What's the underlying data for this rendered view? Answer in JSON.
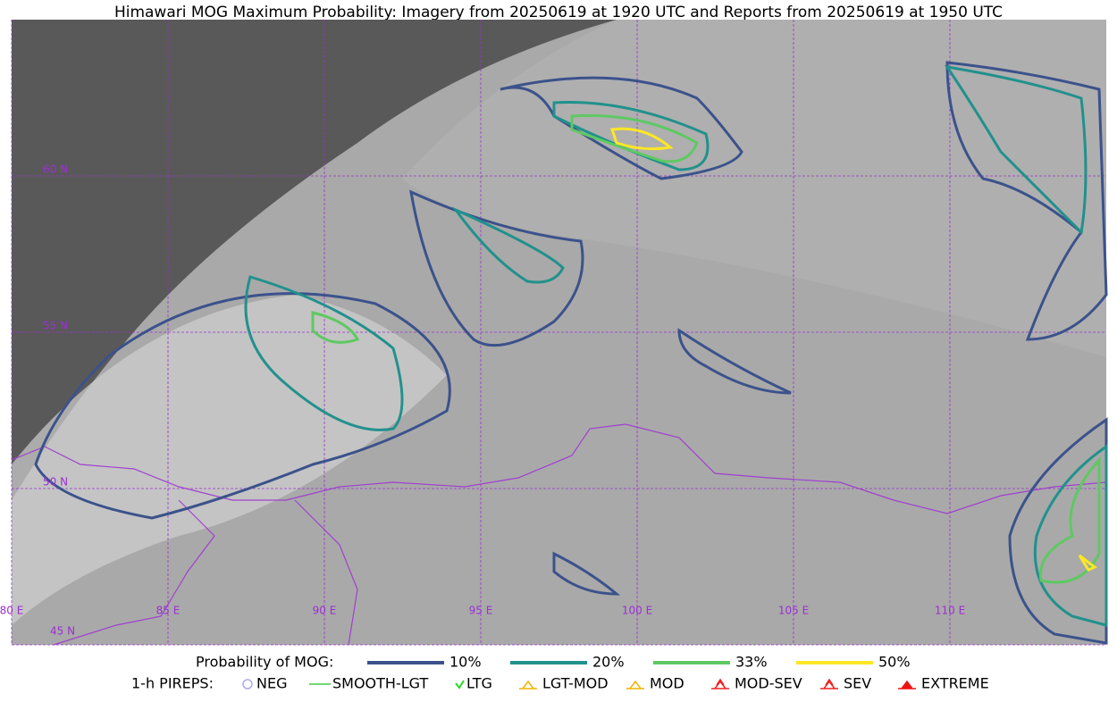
{
  "header": {
    "title": "Himawari MOG Maximum Probability: Imagery from 20250619 at 1920 UTC and Reports from 20250619 at 1950 UTC"
  },
  "map": {
    "lat_labels": [
      "60 N",
      "55 N",
      "50 N",
      "45 N"
    ],
    "lon_labels": [
      "80 E",
      "85 E",
      "90 E",
      "95 E",
      "100 E",
      "105 E",
      "110 E"
    ]
  },
  "legend": {
    "title": "Probability of MOG:",
    "items": [
      {
        "label": "10%",
        "color": "#3b528b"
      },
      {
        "label": "20%",
        "color": "#21918c"
      },
      {
        "label": "33%",
        "color": "#5ec962"
      },
      {
        "label": "50%",
        "color": "#fde725"
      }
    ]
  },
  "pireps": {
    "title": "1-h PIREPS:",
    "items": [
      "NEG",
      "SMOOTH-LGT",
      "LTG",
      "LGT-MOD",
      "MOD",
      "MOD-SEV",
      "SEV",
      "EXTREME"
    ]
  }
}
